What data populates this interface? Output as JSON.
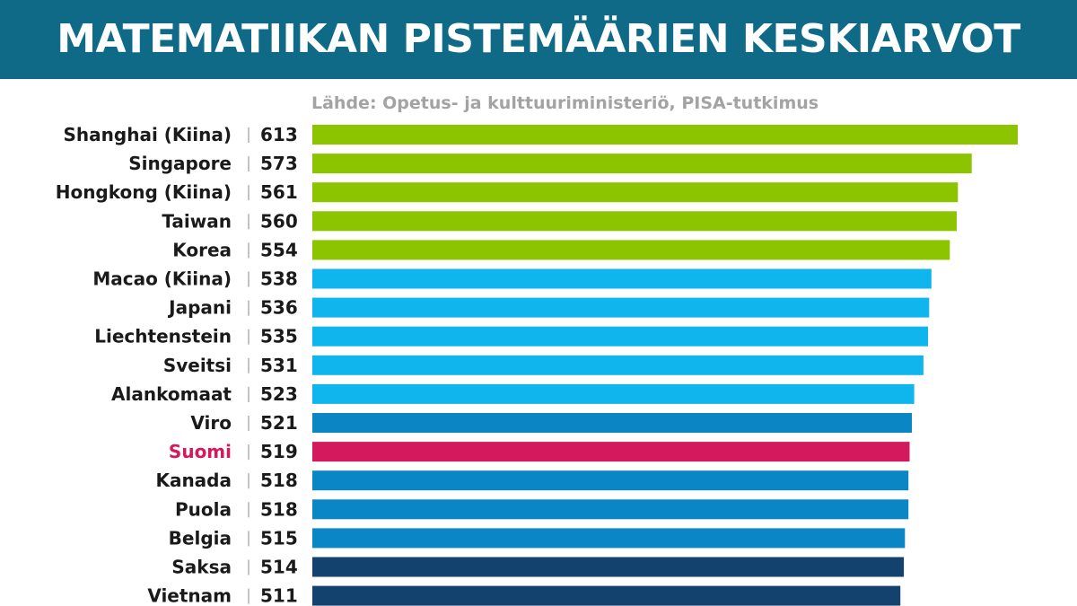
{
  "header": {
    "title": "MATEMATIIKAN PISTEMÄÄRIEN KESKIARVOT",
    "source": "Lähde: Opetus- ja kulttuuriministeriö, PISA-tutkimus"
  },
  "colors": {
    "header_bg": "#0e6a86",
    "green": "#8cc400",
    "light_blue": "#0fb6ee",
    "mid_blue": "#0a86c5",
    "dark_blue": "#13426e",
    "highlight": "#d41a5c",
    "separator": "#9a9a9a"
  },
  "chart_data": {
    "type": "bar",
    "orientation": "horizontal",
    "categories": [
      "Shanghai (Kiina)",
      "Singapore",
      "Hongkong (Kiina)",
      "Taiwan",
      "Korea",
      "Macao (Kiina)",
      "Japani",
      "Liechtenstein",
      "Sveitsi",
      "Alankomaat",
      "Viro",
      "Suomi",
      "Kanada",
      "Puola",
      "Belgia",
      "Saksa",
      "Vietnam"
    ],
    "values": [
      613,
      573,
      561,
      560,
      554,
      538,
      536,
      535,
      531,
      523,
      521,
      519,
      518,
      518,
      515,
      514,
      511
    ],
    "colors": [
      "#8cc400",
      "#8cc400",
      "#8cc400",
      "#8cc400",
      "#8cc400",
      "#0fb6ee",
      "#0fb6ee",
      "#0fb6ee",
      "#0fb6ee",
      "#0fb6ee",
      "#0a86c5",
      "#d41a5c",
      "#0a86c5",
      "#0a86c5",
      "#0a86c5",
      "#13426e",
      "#13426e"
    ],
    "highlight_category": "Suomi",
    "title": "MATEMATIIKAN PISTEMÄÄRIEN KESKIARVOT",
    "xlabel": "",
    "ylabel": "",
    "xlim": [
      0,
      613
    ]
  }
}
